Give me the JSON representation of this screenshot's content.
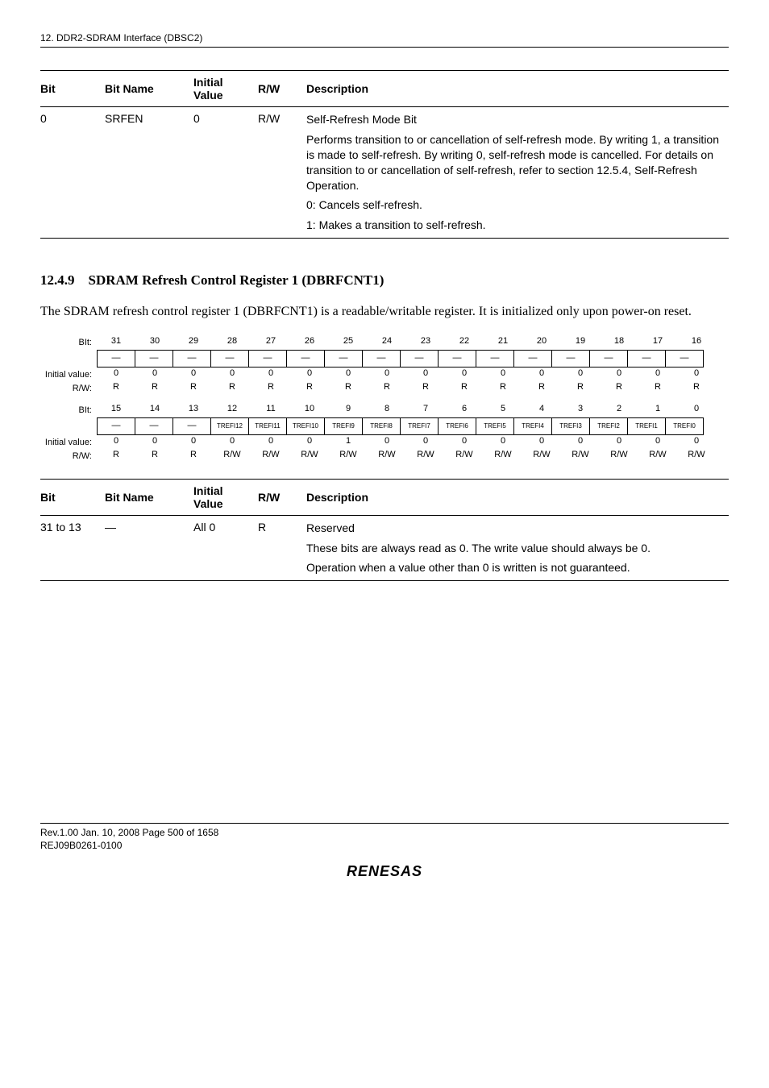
{
  "header": {
    "chapter": "12.   DDR2-SDRAM Interface (DBSC2)"
  },
  "table1": {
    "columns": [
      "Bit",
      "Bit Name",
      "Initial Value",
      "R/W",
      "Description"
    ],
    "row": {
      "bit": "0",
      "name": "SRFEN",
      "init": "0",
      "rw": "R/W",
      "desc_title": "Self-Refresh Mode Bit",
      "desc_para": "Performs transition to or cancellation of self-refresh mode. By writing 1, a transition is made to self-refresh. By writing 0, self-refresh mode is cancelled. For details on transition to or cancellation of self-refresh, refer to section 12.5.4, Self-Refresh Operation.",
      "desc_l1": "0: Cancels self-refresh.",
      "desc_l2": "1: Makes a transition to self-refresh."
    }
  },
  "section": {
    "num": "12.4.9",
    "title": "SDRAM Refresh Control Register 1 (DBRFCNT1)"
  },
  "body": "The SDRAM refresh control register 1 (DBRFCNT1) is a readable/writable register. It is initialized only upon power-on reset.",
  "bitdiag": {
    "label_bit": "BIt:",
    "label_init": "Initial value:",
    "label_rw": "R/W:",
    "rows": [
      {
        "nums": [
          "31",
          "30",
          "29",
          "28",
          "27",
          "26",
          "25",
          "24",
          "23",
          "22",
          "21",
          "20",
          "19",
          "18",
          "17",
          "16"
        ],
        "names": [
          "—",
          "—",
          "—",
          "—",
          "—",
          "—",
          "—",
          "—",
          "—",
          "—",
          "—",
          "—",
          "—",
          "—",
          "—",
          "—"
        ],
        "inits": [
          "0",
          "0",
          "0",
          "0",
          "0",
          "0",
          "0",
          "0",
          "0",
          "0",
          "0",
          "0",
          "0",
          "0",
          "0",
          "0"
        ],
        "rws": [
          "R",
          "R",
          "R",
          "R",
          "R",
          "R",
          "R",
          "R",
          "R",
          "R",
          "R",
          "R",
          "R",
          "R",
          "R",
          "R"
        ]
      },
      {
        "nums": [
          "15",
          "14",
          "13",
          "12",
          "11",
          "10",
          "9",
          "8",
          "7",
          "6",
          "5",
          "4",
          "3",
          "2",
          "1",
          "0"
        ],
        "names": [
          "—",
          "—",
          "—",
          "TREFI12",
          "TREFI11",
          "TREFI10",
          "TREFI9",
          "TREFI8",
          "TREFI7",
          "TREFI6",
          "TREFI5",
          "TREFI4",
          "TREFI3",
          "TREFI2",
          "TREFI1",
          "TREFI0"
        ],
        "inits": [
          "0",
          "0",
          "0",
          "0",
          "0",
          "0",
          "1",
          "0",
          "0",
          "0",
          "0",
          "0",
          "0",
          "0",
          "0",
          "0"
        ],
        "rws": [
          "R",
          "R",
          "R",
          "R/W",
          "R/W",
          "R/W",
          "R/W",
          "R/W",
          "R/W",
          "R/W",
          "R/W",
          "R/W",
          "R/W",
          "R/W",
          "R/W",
          "R/W"
        ]
      }
    ]
  },
  "table2": {
    "columns": [
      "Bit",
      "Bit Name",
      "Initial Value",
      "R/W",
      "Description"
    ],
    "row": {
      "bit": "31 to 13",
      "name": "—",
      "init": "All 0",
      "rw": "R",
      "desc_title": "Reserved",
      "desc_p1": "These bits are always read as 0. The write value should always be 0.",
      "desc_p2": "Operation when a value other than 0 is written is not guaranteed."
    }
  },
  "footer": {
    "line1": "Rev.1.00  Jan. 10, 2008  Page 500 of 1658",
    "line2": "REJ09B0261-0100",
    "logo": "RENESAS"
  }
}
